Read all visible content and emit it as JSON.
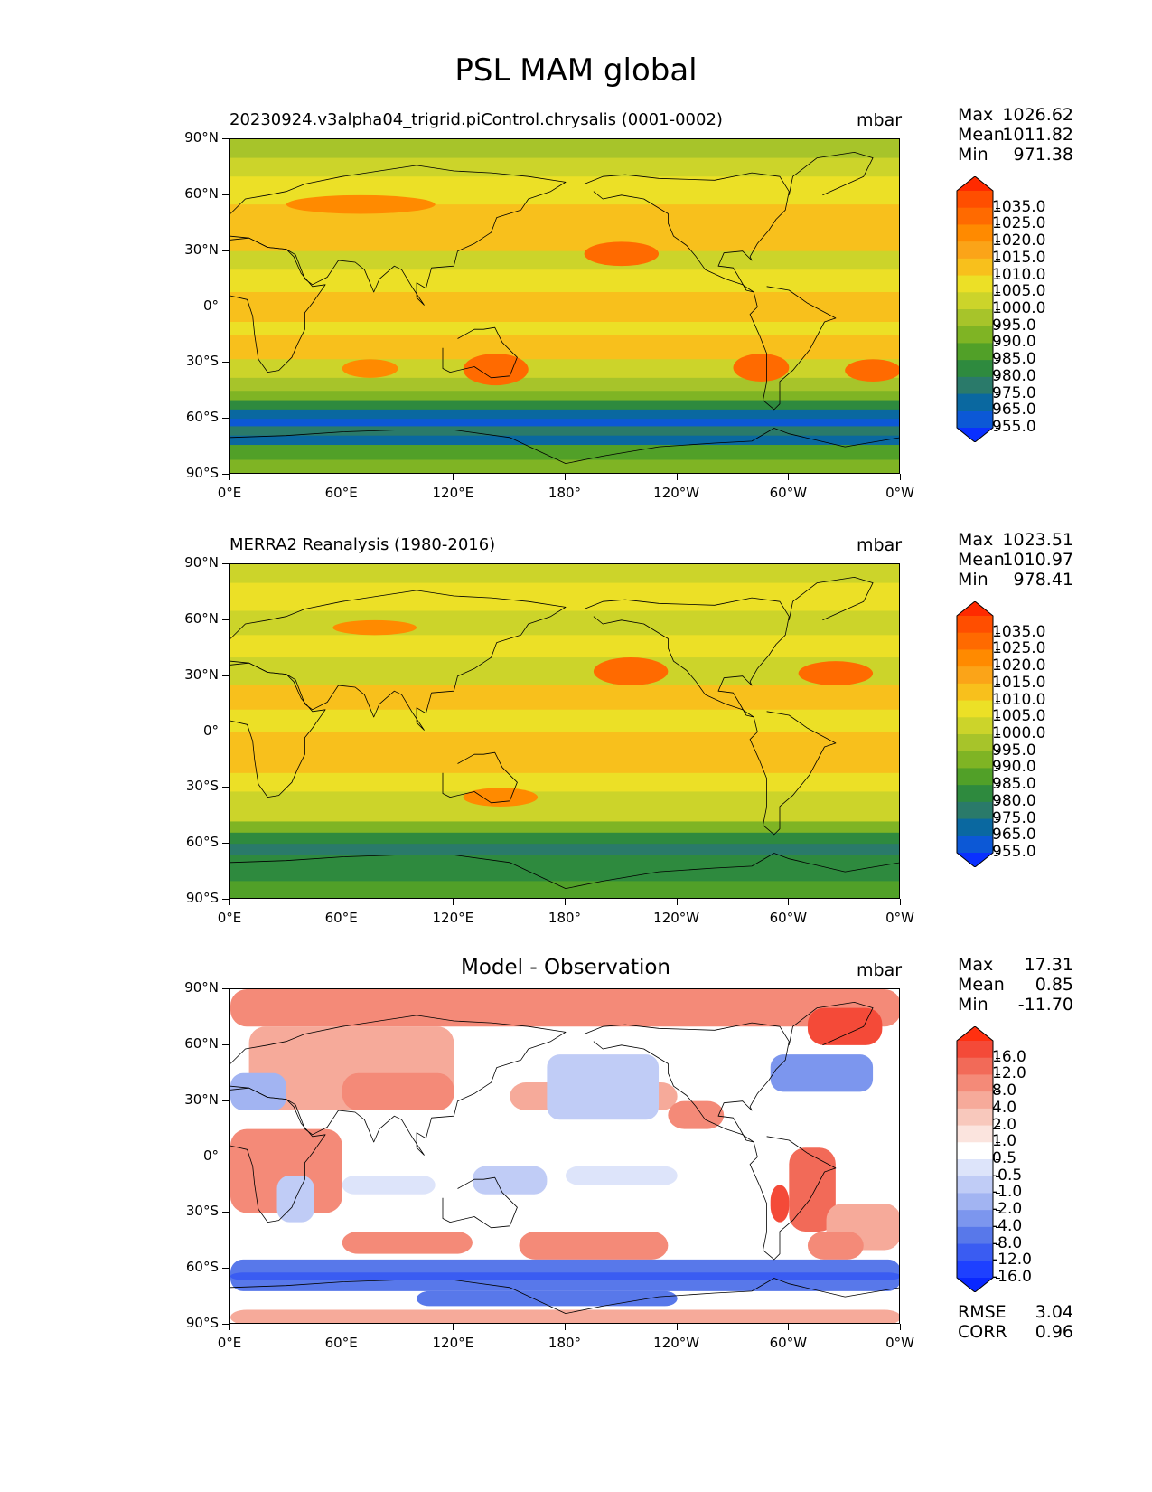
{
  "figure": {
    "title": "PSL MAM global"
  },
  "axes": {
    "lat_labels": [
      "90°N",
      "60°N",
      "30°N",
      "0°",
      "30°S",
      "60°S",
      "90°S"
    ],
    "lon_labels": [
      "0°E",
      "60°E",
      "120°E",
      "180°",
      "120°W",
      "60°W",
      "0°W"
    ]
  },
  "panels": [
    {
      "title": "20230924.v3alpha04_trigrid.piControl.chrysalis (0001-0002)",
      "title_style": "left",
      "units": "mbar",
      "stats": {
        "max_label": "Max",
        "max": "1026.62",
        "mean_label": "Mean",
        "mean": "1011.82",
        "min_label": "Min",
        "min": "971.38"
      },
      "colorbar": {
        "labels": [
          "1035.0",
          "1025.0",
          "1020.0",
          "1015.0",
          "1010.0",
          "1005.0",
          "1000.0",
          "995.0",
          "990.0",
          "985.0",
          "980.0",
          "975.0",
          "965.0",
          "955.0"
        ],
        "colors": [
          "#ff2a00",
          "#ff4e00",
          "#ff6a00",
          "#ff8a00",
          "#fba418",
          "#f8c01c",
          "#ece026",
          "#ccd42a",
          "#a7c42a",
          "#7fb424",
          "#51a028",
          "#2e8a3e",
          "#2a7a6a",
          "#0a68a0",
          "#0c58d6",
          "#0a30ff"
        ],
        "top_color": "#ff2a00",
        "bottom_color": "#0a30ff"
      },
      "field": "model"
    },
    {
      "title": "MERRA2 Reanalysis (1980-2016)",
      "title_style": "left",
      "units": "mbar",
      "stats": {
        "max_label": "Max",
        "max": "1023.51",
        "mean_label": "Mean",
        "mean": "1010.97",
        "min_label": "Min",
        "min": "978.41"
      },
      "colorbar": {
        "labels": [
          "1035.0",
          "1025.0",
          "1020.0",
          "1015.0",
          "1010.0",
          "1005.0",
          "1000.0",
          "995.0",
          "990.0",
          "985.0",
          "980.0",
          "975.0",
          "965.0",
          "955.0"
        ],
        "colors": [
          "#ff2a00",
          "#ff4e00",
          "#ff6a00",
          "#ff8a00",
          "#fba418",
          "#f8c01c",
          "#ece026",
          "#ccd42a",
          "#a7c42a",
          "#7fb424",
          "#51a028",
          "#2e8a3e",
          "#2a7a6a",
          "#0a68a0",
          "#0c58d6",
          "#0a30ff"
        ],
        "top_color": "#ff2a00",
        "bottom_color": "#0a30ff"
      },
      "field": "obs"
    },
    {
      "title": "Model - Observation",
      "title_style": "center",
      "units": "mbar",
      "stats": {
        "max_label": "Max",
        "max": "17.31",
        "mean_label": "Mean",
        "mean": "0.85",
        "min_label": "Min",
        "min": "-11.70"
      },
      "colorbar": {
        "labels": [
          "16.0",
          "12.0",
          "8.0",
          "4.0",
          "2.0",
          "1.0",
          "0.5",
          "-0.5",
          "-1.0",
          "-2.0",
          "-4.0",
          "-8.0",
          "-12.0",
          "-16.0"
        ],
        "colors": [
          "#ff3010",
          "#f44a38",
          "#f26a58",
          "#f48a78",
          "#f6aa9a",
          "#f8c8bc",
          "#fbe4de",
          "#ffffff",
          "#dde4fa",
          "#c0ccf6",
          "#a2b4f2",
          "#7c96ee",
          "#5878ea",
          "#3a5cf2",
          "#1e40ff",
          "#0a28ff"
        ],
        "top_color": "#ff3010",
        "bottom_color": "#0a28ff"
      },
      "field": "diff",
      "metrics": {
        "rmse_label": "RMSE",
        "rmse": "3.04",
        "corr_label": "CORR",
        "corr": "0.96"
      }
    }
  ]
}
